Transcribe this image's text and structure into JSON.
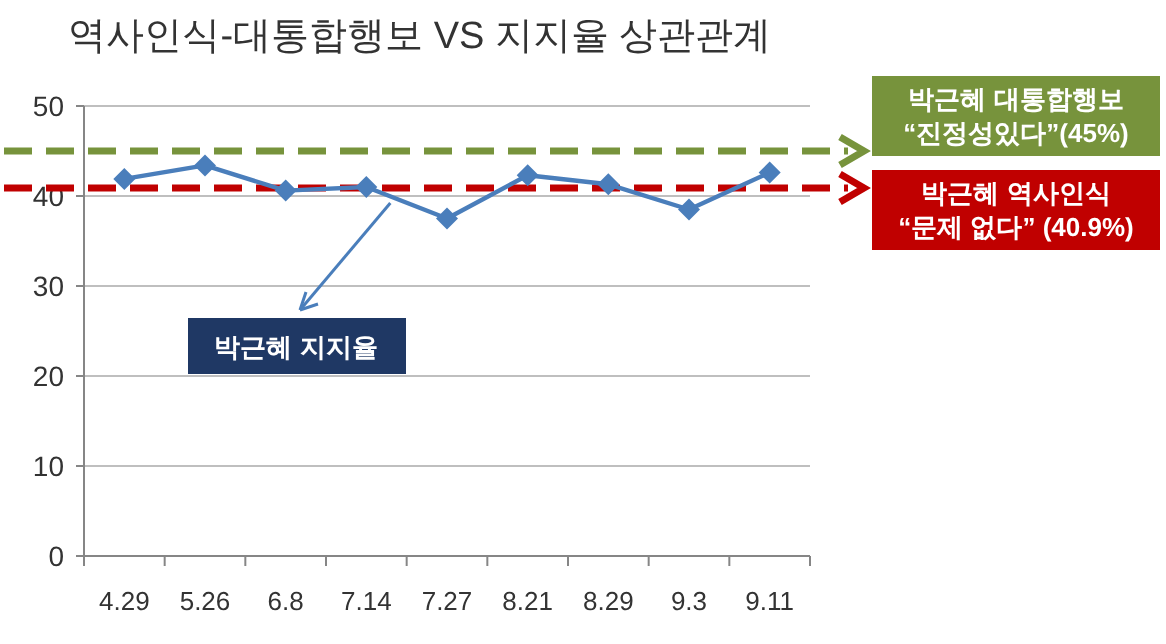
{
  "chart_data": {
    "type": "line",
    "title": "역사인식-대통합행보 VS 지지율 상관관계",
    "categories": [
      "4.29",
      "5.26",
      "6.8",
      "7.14",
      "7.27",
      "8.21",
      "8.29",
      "9.3",
      "9.11"
    ],
    "series": [
      {
        "name": "박근혜 지지율",
        "color": "#4a7ebb",
        "values": [
          41.9,
          43.4,
          40.6,
          41.0,
          37.5,
          42.3,
          41.3,
          38.5,
          42.6
        ]
      }
    ],
    "ylim": [
      0,
      50
    ],
    "yticks": [
      0,
      10,
      20,
      30,
      40,
      50
    ],
    "grid": "y",
    "marker": "diamond",
    "line_style": "solid",
    "ref_lines": [
      {
        "axis": "y",
        "value": 45,
        "label": "박근혜 대통합행보\n“진정성있다”(45%)",
        "color": "#77933c",
        "line_style": "dashed"
      },
      {
        "axis": "y",
        "value": 40.9,
        "label": "박근혜 역사인식\n“문제 없다” (40.9%)",
        "color": "#c00000",
        "line_style": "dashed"
      }
    ]
  }
}
